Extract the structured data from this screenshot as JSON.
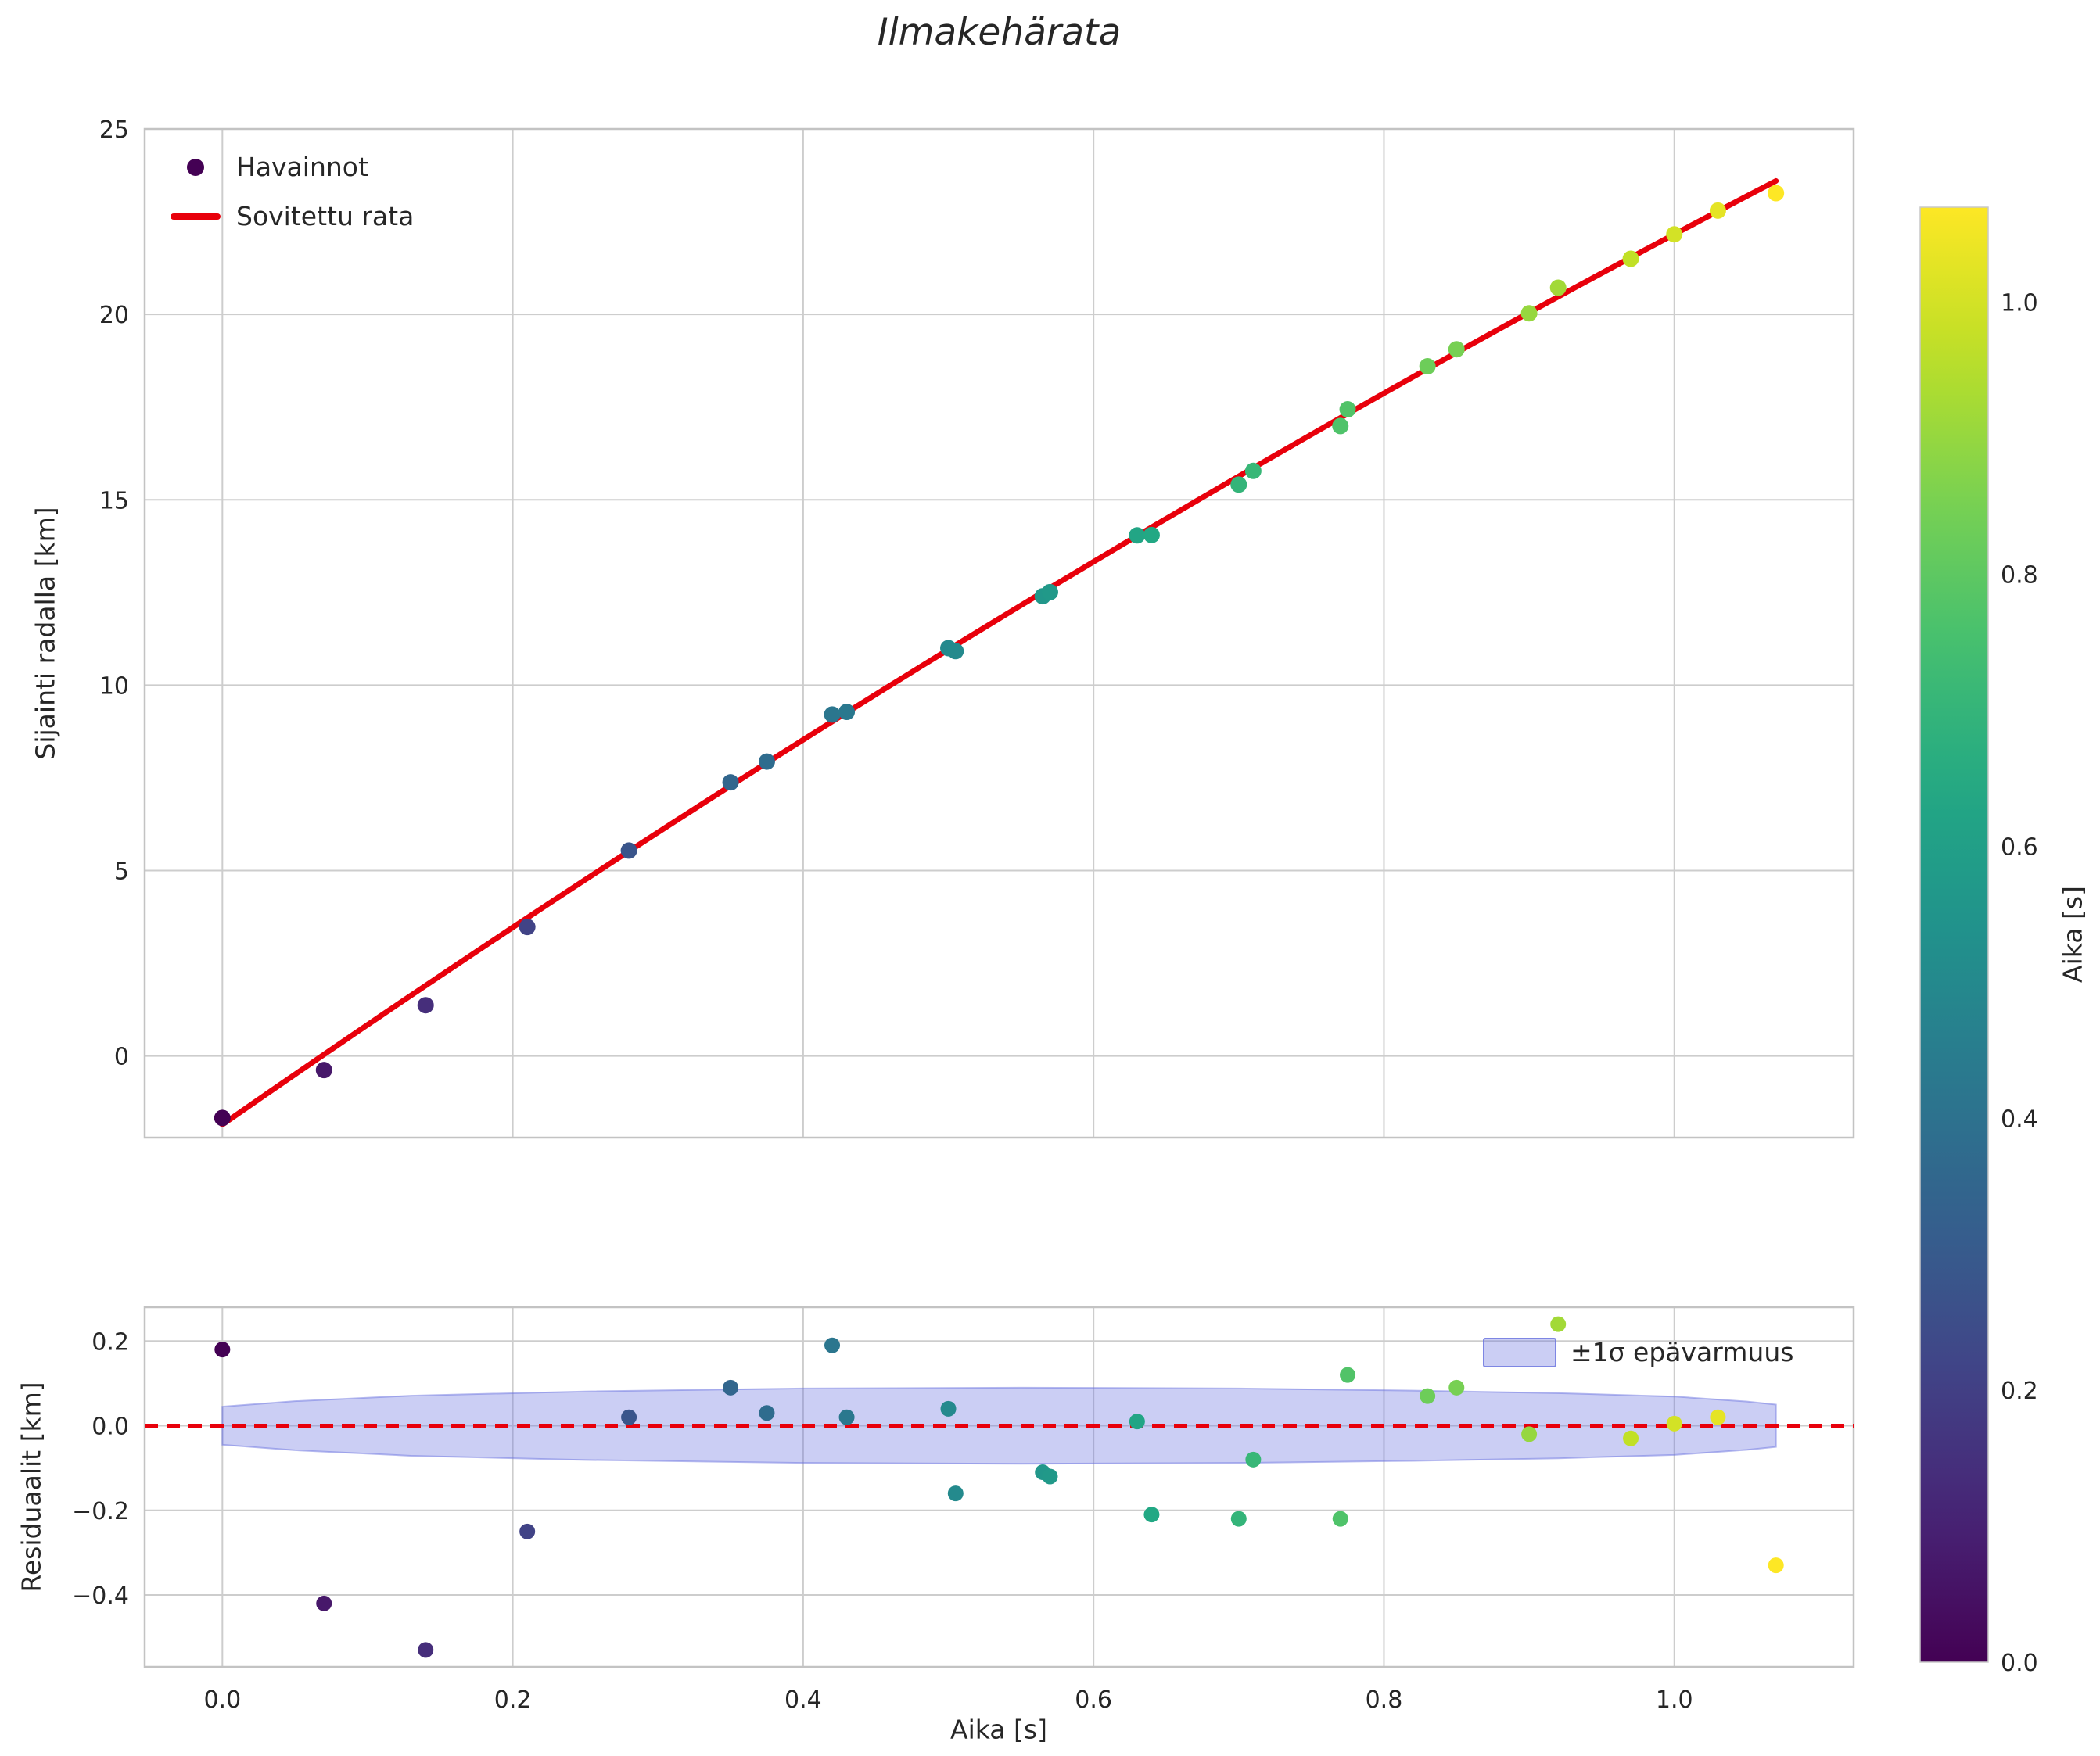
{
  "figure": {
    "title": "Ilmakehärata",
    "background_color": "#ffffff",
    "text_color": "#262626",
    "grid_color": "#cdcdcd",
    "frame_color": "#c3c3c3"
  },
  "chart_data": [
    {
      "type": "scatter",
      "name": "trajectory-plot",
      "title": "Ilmakehärata",
      "xlabel": "",
      "ylabel": "Sijainti radalla [km]",
      "xlim": [
        -0.0535,
        1.1235
      ],
      "ylim": [
        -2.2,
        25.0
      ],
      "xticks": [
        0.0,
        0.2,
        0.4,
        0.6,
        0.8,
        1.0
      ],
      "yticks": [
        0,
        5,
        10,
        15,
        20,
        25
      ],
      "yticklabels": [
        "0",
        "5",
        "10",
        "15",
        "20",
        "25"
      ],
      "grid": true,
      "legend": {
        "position": "upper left",
        "entries": [
          {
            "label": "Havainnot",
            "type": "marker",
            "color": "#440154"
          },
          {
            "label": "Sovitettu rata",
            "type": "line",
            "color": "#e8000b"
          }
        ]
      },
      "series": [
        {
          "name": "Havainnot",
          "type": "scatter",
          "color_by": "t",
          "colormap": "viridis",
          "t": [
            0.0,
            0.07,
            0.14,
            0.21,
            0.28,
            0.35,
            0.375,
            0.42,
            0.43,
            0.5,
            0.505,
            0.565,
            0.57,
            0.63,
            0.64,
            0.7,
            0.71,
            0.77,
            0.775,
            0.83,
            0.85,
            0.9,
            0.92,
            0.97,
            1.0,
            1.03,
            1.07
          ],
          "y": [
            -1.67,
            -0.38,
            1.37,
            3.48,
            5.54,
            7.38,
            7.94,
            9.21,
            9.28,
            11.0,
            10.92,
            12.4,
            12.51,
            14.04,
            14.05,
            15.41,
            15.78,
            16.99,
            17.44,
            18.6,
            19.06,
            20.03,
            20.72,
            21.5,
            22.16,
            22.8,
            23.27
          ]
        },
        {
          "name": "Sovitettu rata",
          "type": "fit-line",
          "color": "#e8000b",
          "poly_coeffs": [
            -1.85,
            27.23,
            -3.22
          ],
          "t_range": [
            0.0,
            1.07
          ]
        }
      ]
    },
    {
      "type": "scatter",
      "name": "residual-plot",
      "xlabel": "Aika [s]",
      "ylabel": "Residuaalit [km]",
      "xlim": [
        -0.0535,
        1.1235
      ],
      "ylim": [
        -0.57,
        0.28
      ],
      "xticks": [
        0.0,
        0.2,
        0.4,
        0.6,
        0.8,
        1.0
      ],
      "xticklabels": [
        "0.0",
        "0.2",
        "0.4",
        "0.6",
        "0.8",
        "1.0"
      ],
      "yticks": [
        0.2,
        0.0,
        -0.2,
        -0.4
      ],
      "yticklabels": [
        "0.2",
        "0.0",
        "−0.2",
        "−0.4"
      ],
      "grid": true,
      "zero_line": {
        "y": 0.0,
        "color": "#e8000b",
        "style": "dashed"
      },
      "band": {
        "label": "±1σ epävarmuus",
        "color": "#6b74e0",
        "fill_opacity": 0.35,
        "x": [
          0.0,
          0.05,
          0.13,
          0.25,
          0.4,
          0.55,
          0.7,
          0.82,
          0.92,
          1.0,
          1.05,
          1.07
        ],
        "halfwidth": [
          0.045,
          0.058,
          0.071,
          0.081,
          0.088,
          0.09,
          0.088,
          0.083,
          0.077,
          0.069,
          0.057,
          0.05
        ]
      },
      "legend": {
        "position": "upper right",
        "entries": [
          {
            "label": "±1σ epävarmuus",
            "type": "patch",
            "color": "#6b74e0"
          }
        ]
      },
      "series": [
        {
          "name": "residuals",
          "type": "scatter",
          "color_by": "t",
          "colormap": "viridis",
          "t": [
            0.0,
            0.07,
            0.14,
            0.21,
            0.28,
            0.35,
            0.375,
            0.42,
            0.43,
            0.5,
            0.505,
            0.565,
            0.57,
            0.63,
            0.64,
            0.7,
            0.71,
            0.77,
            0.775,
            0.83,
            0.85,
            0.9,
            0.92,
            0.97,
            1.0,
            1.03,
            1.07
          ],
          "r": [
            0.18,
            -0.42,
            -0.53,
            -0.25,
            0.02,
            0.09,
            0.03,
            0.19,
            0.02,
            0.04,
            -0.16,
            -0.11,
            -0.12,
            0.01,
            -0.21,
            -0.22,
            -0.08,
            -0.22,
            0.12,
            0.07,
            0.09,
            -0.02,
            0.24,
            -0.03,
            0.005,
            0.02,
            -0.33
          ]
        }
      ]
    }
  ],
  "colorbar": {
    "label": "Aika [s]",
    "range": [
      0.0,
      1.07
    ],
    "ticks": [
      0.0,
      0.2,
      0.4,
      0.6,
      0.8,
      1.0
    ],
    "ticklabels": [
      "0.0",
      "0.2",
      "0.4",
      "0.6",
      "0.8",
      "1.0"
    ],
    "colormap": "viridis"
  },
  "viridis_stops": [
    "#440154",
    "#482475",
    "#414487",
    "#355f8d",
    "#2a788e",
    "#21918c",
    "#22a884",
    "#44bf70",
    "#7ad151",
    "#bddf26",
    "#fde725"
  ]
}
